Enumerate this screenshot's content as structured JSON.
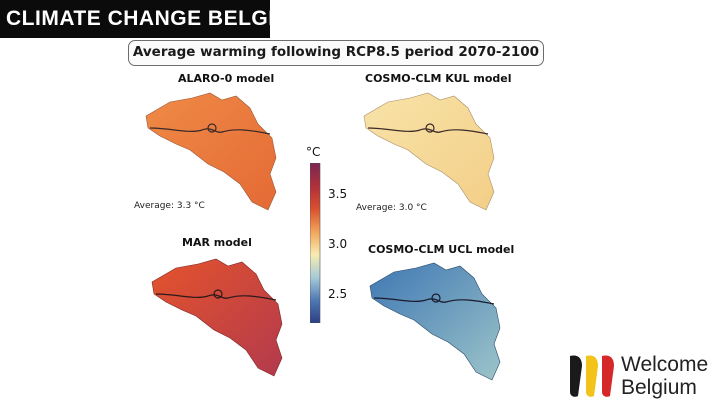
{
  "header": {
    "banner_text": "CLIMATE CHANGE BELGIUM"
  },
  "figure": {
    "title": "Average warming following RCP8.5 period 2070-2100",
    "colorbar": {
      "unit": "°C",
      "ticks": [
        "3.5",
        "3.0",
        "2.5"
      ],
      "range": [
        2.2,
        3.9
      ],
      "colors": [
        "#2c3e86",
        "#4f79b4",
        "#a9cbd7",
        "#f7ecb0",
        "#f1a45a",
        "#d9502f",
        "#b02f3a",
        "#7a2754"
      ]
    },
    "panels": [
      {
        "title": "ALARO-0 model",
        "average_label": "Average: 3.3 °C",
        "base_color": "#ef8a46",
        "accent_color": "#e46a35"
      },
      {
        "title": "COSMO-CLM KUL model",
        "average_label": "Average: 3.0 °C",
        "base_color": "#f8e3a8",
        "accent_color": "#f3cf88"
      },
      {
        "title": "MAR model",
        "average_label": "",
        "base_color": "#e4532c",
        "accent_color": "#b33a4d"
      },
      {
        "title": "COSMO-CLM UCL model",
        "average_label": "",
        "base_color": "#3f77b3",
        "accent_color": "#9cc4c9"
      }
    ]
  },
  "logo": {
    "line1": "Welcome",
    "line2": "Belgium",
    "stripe_colors": [
      "#1a1a1a",
      "#f2c318",
      "#d62828"
    ]
  }
}
